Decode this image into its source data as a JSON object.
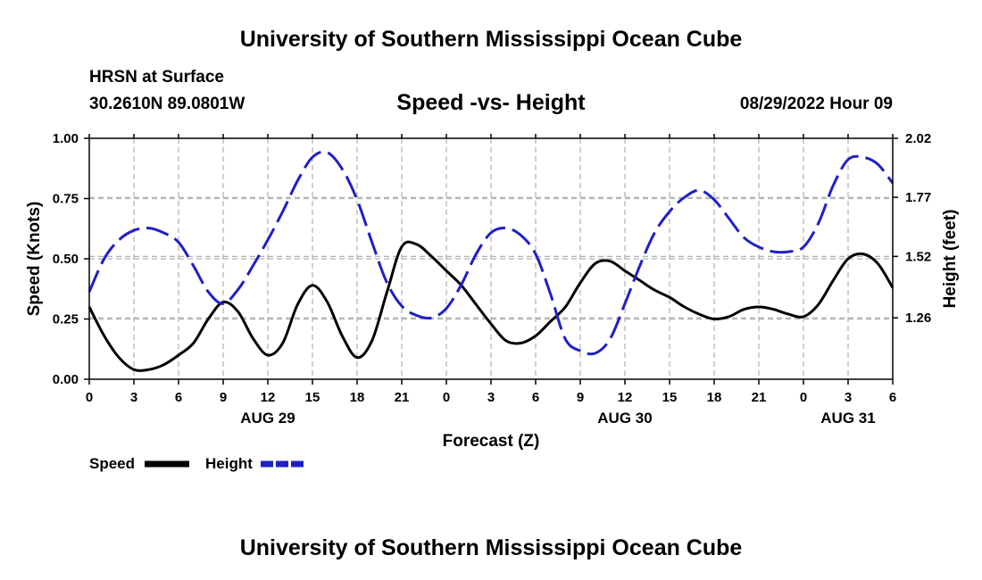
{
  "header": {
    "title": "University of Southern Mississippi Ocean Cube",
    "station": "HRSN at Surface",
    "coords": "30.2610N  89.0801W",
    "chart_title": "Speed -vs- Height",
    "datetime": "08/29/2022 Hour 09"
  },
  "footer": {
    "title": "University of Southern Mississippi Ocean Cube"
  },
  "colors": {
    "speed": "#000000",
    "height": "#1f1fc8",
    "grid": "#b0b0b0"
  },
  "chart_data": {
    "type": "line",
    "title": "Speed -vs- Height",
    "xlabel": "Forecast (Z)",
    "ylabel": "Speed (Knots)",
    "y2label": "Height (feet)",
    "x_range_hours": [
      0,
      54
    ],
    "x_ticks": [
      "0",
      "3",
      "6",
      "9",
      "12",
      "15",
      "18",
      "21",
      "0",
      "3",
      "6",
      "9",
      "12",
      "15",
      "18",
      "21",
      "0",
      "3",
      "6"
    ],
    "date_labels": [
      {
        "label": "AUG 29",
        "tick_index": 4
      },
      {
        "label": "AUG 30",
        "tick_index": 12
      },
      {
        "label": "AUG 31",
        "tick_index": 17
      }
    ],
    "ylim": [
      0,
      1.0
    ],
    "y_ticks": [
      "0.00",
      "0.25",
      "0.50",
      "0.75",
      "1.00"
    ],
    "y2lim": [
      1.0,
      2.02
    ],
    "y2_ticks": [
      "1.26",
      "1.52",
      "1.77",
      "2.02"
    ],
    "grid": true,
    "legend_position": "bottom-left",
    "series": [
      {
        "name": "Speed",
        "axis": "left",
        "style": "solid",
        "x": [
          0,
          1,
          2,
          3,
          4,
          5,
          6,
          7,
          8,
          9,
          10,
          11,
          12,
          13,
          14,
          15,
          16,
          17,
          18,
          19,
          20,
          21,
          22,
          23,
          24,
          25,
          26,
          27,
          28,
          29,
          30,
          31,
          32,
          33,
          34,
          35,
          36,
          37,
          38,
          39,
          40,
          41,
          42,
          43,
          44,
          45,
          46,
          47,
          48,
          49,
          50,
          51,
          52,
          53,
          54
        ],
        "values": [
          0.3,
          0.18,
          0.09,
          0.04,
          0.04,
          0.06,
          0.1,
          0.15,
          0.25,
          0.32,
          0.28,
          0.17,
          0.1,
          0.15,
          0.31,
          0.39,
          0.32,
          0.18,
          0.09,
          0.16,
          0.36,
          0.55,
          0.56,
          0.51,
          0.45,
          0.39,
          0.31,
          0.23,
          0.16,
          0.15,
          0.18,
          0.24,
          0.3,
          0.4,
          0.48,
          0.49,
          0.45,
          0.41,
          0.37,
          0.34,
          0.3,
          0.27,
          0.25,
          0.26,
          0.29,
          0.3,
          0.29,
          0.27,
          0.26,
          0.31,
          0.41,
          0.5,
          0.52,
          0.48,
          0.38
        ]
      },
      {
        "name": "Height",
        "axis": "right",
        "style": "dashed",
        "x": [
          0,
          1,
          2,
          3,
          4,
          5,
          6,
          7,
          8,
          9,
          10,
          11,
          12,
          13,
          14,
          15,
          16,
          17,
          18,
          19,
          20,
          21,
          22,
          23,
          24,
          25,
          26,
          27,
          28,
          29,
          30,
          31,
          32,
          33,
          34,
          35,
          36,
          37,
          38,
          39,
          40,
          41,
          42,
          43,
          44,
          45,
          46,
          47,
          48,
          49,
          50,
          51,
          52,
          53,
          54
        ],
        "values": [
          1.37,
          1.51,
          1.59,
          1.63,
          1.64,
          1.62,
          1.58,
          1.48,
          1.37,
          1.32,
          1.38,
          1.48,
          1.59,
          1.71,
          1.84,
          1.94,
          1.96,
          1.89,
          1.76,
          1.58,
          1.41,
          1.31,
          1.27,
          1.26,
          1.3,
          1.4,
          1.53,
          1.62,
          1.64,
          1.61,
          1.53,
          1.36,
          1.17,
          1.12,
          1.11,
          1.17,
          1.32,
          1.48,
          1.62,
          1.71,
          1.77,
          1.8,
          1.76,
          1.68,
          1.6,
          1.56,
          1.54,
          1.54,
          1.56,
          1.66,
          1.82,
          1.93,
          1.94,
          1.91,
          1.83
        ]
      }
    ]
  }
}
